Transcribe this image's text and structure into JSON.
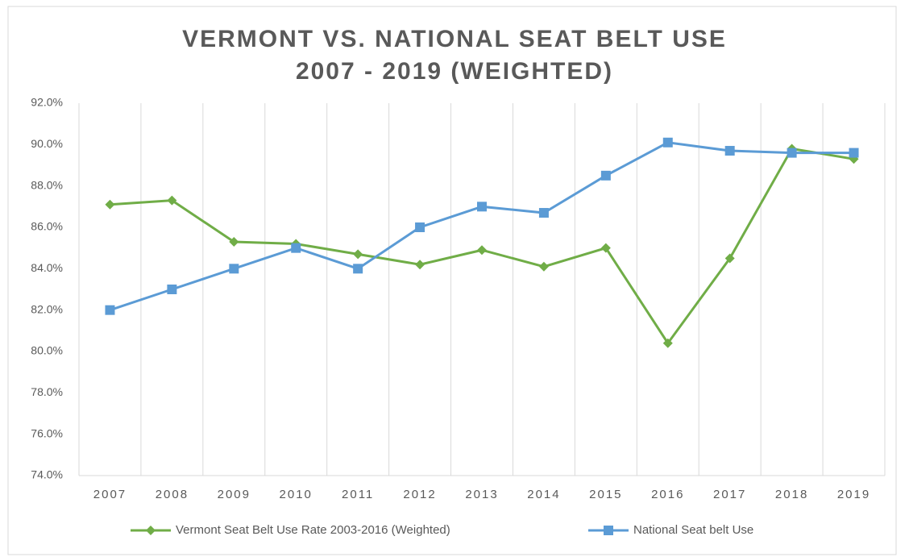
{
  "chart_data": {
    "type": "line",
    "title": [
      "VERMONT VS. NATIONAL SEAT BELT USE",
      "2007 - 2019 (WEIGHTED)"
    ],
    "categories": [
      "2007",
      "2008",
      "2009",
      "2010",
      "2011",
      "2012",
      "2013",
      "2014",
      "2015",
      "2016",
      "2017",
      "2018",
      "2019"
    ],
    "series": [
      {
        "name": "Vermont Seat Belt Use Rate 2003-2016 (Weighted)",
        "color": "#70ad47",
        "marker": "diamond",
        "values": [
          87.1,
          87.3,
          85.3,
          85.2,
          84.7,
          84.2,
          84.9,
          84.1,
          85.0,
          80.4,
          84.5,
          89.8,
          89.3
        ]
      },
      {
        "name": "National Seat belt Use",
        "color": "#5b9bd5",
        "marker": "square",
        "values": [
          82.0,
          83.0,
          84.0,
          85.0,
          84.0,
          86.0,
          87.0,
          86.7,
          88.5,
          90.1,
          89.7,
          89.6,
          89.6
        ]
      }
    ],
    "ylim": [
      74,
      92
    ],
    "yticks": [
      {
        "value": 74,
        "label": "74.0%"
      },
      {
        "value": 76,
        "label": "76.0%"
      },
      {
        "value": 78,
        "label": "78.0%"
      },
      {
        "value": 80,
        "label": "80.0%"
      },
      {
        "value": 82,
        "label": "82.0%"
      },
      {
        "value": 84,
        "label": "84.0%"
      },
      {
        "value": 86,
        "label": "86.0%"
      },
      {
        "value": 88,
        "label": "88.0%"
      },
      {
        "value": 90,
        "label": "90.0%"
      },
      {
        "value": 92,
        "label": "92.0%"
      }
    ],
    "grid": "vertical",
    "legend": "bottom"
  }
}
